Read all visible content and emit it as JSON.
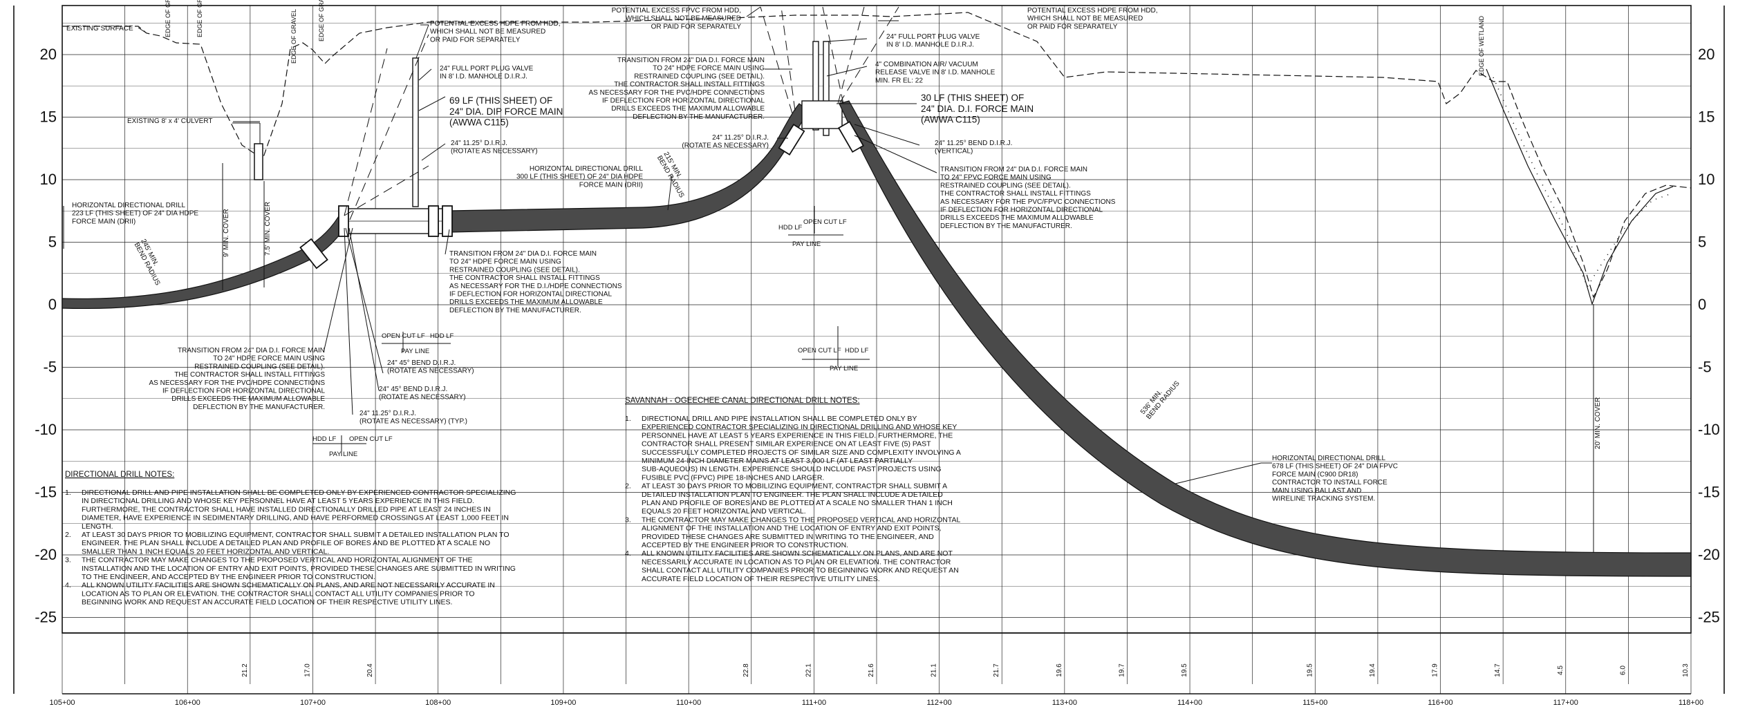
{
  "profile": {
    "elevation_labels": [
      "20",
      "15",
      "10",
      "5",
      "0",
      "-5",
      "-10",
      "-15",
      "-20",
      "-25"
    ],
    "elevation_values": [
      20,
      15,
      10,
      5,
      0,
      -5,
      -10,
      -15,
      -20,
      -25
    ],
    "stations": [
      "105+00",
      "106+00",
      "107+00",
      "108+00",
      "109+00",
      "110+00",
      "111+00",
      "112+00",
      "113+00",
      "114+00",
      "115+00",
      "116+00",
      "117+00",
      "118+00"
    ],
    "ground_elevations": [
      "21.2",
      "17.0",
      "20.4",
      "22.8",
      "22.1",
      "21.6",
      "21.1",
      "21.7",
      "19.6",
      "19.7",
      "19.5",
      "19.5",
      "19.4",
      "17.9",
      "14.7",
      "4.5",
      "6.0",
      "10.3"
    ],
    "ground_elevation_positions_sta": [
      106.5,
      107.0,
      107.5,
      110.5,
      111.0,
      111.5,
      112.0,
      112.5,
      113.0,
      113.5,
      114.0,
      115.0,
      115.5,
      116.0,
      116.5,
      117.0,
      117.5,
      118.0
    ]
  },
  "callouts": {
    "existing_surface": "EXISTING SURFACE",
    "edge_of_gravel": "EDGE OF GRAVEL",
    "edge_of_wetland": "EDGE OF WETLAND",
    "culvert": "EXISTING 8' x 4' CULVERT",
    "hdd_left": [
      "HORIZONTAL DIRECTIONAL DRILL",
      "223 LF (THIS SHEET) OF 24\" DIA HDPE",
      "FORCE MAIN (DRII)"
    ],
    "bend_radius_left": [
      "245' MIN.",
      "BEND RADIUS"
    ],
    "min_cover_9": "9' MIN. COVER",
    "min_cover_75": "7.5' MIN. COVER",
    "excess_hdpe_1": [
      "POTENTIAL EXCESS HDPE FROM HDD,",
      "WHICH SHALL NOT BE MEASURED",
      "OR PAID FOR SEPARATELY"
    ],
    "plug_valve_1": [
      "24\" FULL PORT PLUG VALVE",
      "IN 8' I.D. MANHOLE D.I.R.J."
    ],
    "dip_69": [
      "69 LF (THIS SHEET) OF",
      "24\" DIA. DIP FORCE MAIN",
      "(AWWA C115)"
    ],
    "bend_1125_a": [
      "24\" 11.25° D.I.R.J.",
      "(ROTATE AS NECESSARY)"
    ],
    "hdd_mid": [
      "HORIZONTAL DIRECTIONAL DRILL",
      "300 LF (THIS SHEET) OF 24\" DIA HDPE",
      "FORCE MAIN (DRII)"
    ],
    "transition_center": [
      "TRANSITION FROM 24\" DIA D.I. FORCE MAIN",
      "TO 24\" HDPE FORCE MAIN USING",
      "RESTRAINED COUPLING (SEE DETAIL).",
      "THE CONTRACTOR SHALL INSTALL FITTINGS",
      "AS NECESSARY FOR THE D.I./HDPE CONNECTIONS",
      "IF DEFLECTION FOR HORIZONTAL DIRECTIONAL",
      "DRILLS EXCEEDS THE MAXIMUM ALLOWABLE",
      "DEFLECTION BY THE MANUFACTURER."
    ],
    "transition_left": [
      "TRANSITION FROM 24\" DIA D.I. FORCE MAIN",
      "TO 24\" HDPE FORCE MAIN USING",
      "RESTRAINED COUPLING (SEE DETAIL).",
      "THE CONTRACTOR SHALL INSTALL FITTINGS",
      "AS NECESSARY FOR THE PVC/HDPE CONNECTIONS",
      "IF DEFLECTION FOR HORIZONTAL DIRECTIONAL",
      "DRILLS EXCEEDS THE MAXIMUM ALLOWABLE",
      "DEFLECTION BY THE MANUFACTURER."
    ],
    "bend_45_a": [
      "24\" 45° BEND D.I.R.J.",
      "(ROTATE AS NECESSARY)"
    ],
    "bend_45_b": [
      "24\" 45° BEND D.I.R.J.",
      "(ROTATE AS NECESSARY)"
    ],
    "bend_1125_b": [
      "24\" 11.25° D.I.R.J.",
      "(ROTATE AS NECESSARY) (TYP.)"
    ],
    "excess_fpvc": [
      "POTENTIAL EXCESS FPVC FROM HDD,",
      "WHICH SHALL NOT BE MEASURED",
      "OR PAID FOR SEPARATELY"
    ],
    "transition_top": [
      "TRANSITION FROM 24\" DIA D.I. FORCE MAIN",
      "TO 24\" HDPE FORCE MAIN USING",
      "RESTRAINED COUPLING (SEE DETAIL).",
      "THE CONTRACTOR SHALL INSTALL FITTINGS",
      "AS NECESSARY FOR THE PVC/HDPE CONNECTIONS",
      "IF DEFLECTION FOR HORIZONTAL DIRECTIONAL",
      "DRILLS EXCEEDS THE MAXIMUM ALLOWABLE",
      "DEFLECTION BY THE MANUFACTURER."
    ],
    "bend_1125_c": [
      "24\" 11.25° D.I.R.J.",
      "(ROTATE AS NECESSARY)"
    ],
    "bend_radius_mid": [
      "215' MIN.",
      "BEND RADIUS"
    ],
    "plug_valve_2": [
      "24\" FULL PORT PLUG VALVE",
      "IN 8' I.D. MANHOLE D.I.R.J."
    ],
    "air_vacuum": [
      "4\" COMBINATION AIR/ VACUUM",
      "RELEASE VALVE IN 8' I.D. MANHOLE",
      "MIN. FR EL: 22"
    ],
    "excess_hdpe_2": [
      "POTENTIAL EXCESS HDPE FROM HDD,",
      "WHICH SHALL NOT BE MEASURED",
      "OR PAID FOR SEPARATELY"
    ],
    "dip_30": [
      "30 LF (THIS SHEET) OF",
      "24\" DIA. D.I. FORCE MAIN",
      "(AWWA C115)"
    ],
    "bend_1125_d": [
      "24\" 11.25° BEND D.I.R.J.",
      "(VERTICAL)"
    ],
    "transition_right": [
      "TRANSITION FROM 24\" DIA D.I. FORCE MAIN",
      "TO 24\" FPVC FORCE MAIN USING",
      "RESTRAINED COUPLING (SEE DETAIL).",
      "THE CONTRACTOR SHALL INSTALL FITTINGS",
      "AS NECESSARY FOR THE PVC/FPVC CONNECTIONS",
      "IF DEFLECTION FOR HORIZONTAL DIRECTIONAL",
      "DRILLS EXCEEDS THE MAXIMUM ALLOWABLE",
      "DEFLECTION BY THE MANUFACTURER."
    ],
    "bend_radius_right": [
      "536' MIN.",
      "BEND RADIUS"
    ],
    "hdd_right": [
      "HORIZONTAL DIRECTIONAL DRILL",
      "678 LF (THIS SHEET) OF 24\" DIA FPVC",
      "FORCE MAIN (C900 DR18)",
      "CONTRACTOR TO INSTALL FORCE",
      "MAIN USING BALLAST AND",
      "WIRELINE TRACKING SYSTEM."
    ],
    "min_cover_20": "20' MIN. COVER",
    "hdd_lf": "HDD LF",
    "open_cut_lf": "OPEN CUT LF",
    "pay_line": "PAY LINE"
  },
  "notes_left": {
    "title": "DIRECTIONAL DRILL NOTES:",
    "items": [
      [
        "1.",
        "DIRECTIONAL DRILL AND PIPE INSTALLATION SHALL BE COMPLETED ONLY BY EXPERIENCED CONTRACTOR SPECIALIZING",
        "IN DIRECTIONAL DRILLING AND WHOSE KEY PERSONNEL HAVE AT LEAST 5 YEARS EXPERIENCE IN THIS FIELD.",
        "FURTHERMORE, THE CONTRACTOR SHALL HAVE INSTALLED DIRECTIONALLY DRILLED PIPE AT LEAST 24 INCHES IN",
        "DIAMETER, HAVE EXPERIENCE IN SEDIMENTARY DRILLING, AND HAVE PERFORMED CROSSINGS AT LEAST 1,000 FEET IN",
        "LENGTH."
      ],
      [
        "2.",
        "AT LEAST 30 DAYS PRIOR TO MOBILIZING EQUIPMENT, CONTRACTOR SHALL SUBMIT A DETAILED INSTALLATION PLAN TO",
        "ENGINEER. THE PLAN SHALL INCLUDE A DETAILED PLAN AND PROFILE OF BORES AND BE PLOTTED AT A SCALE NO",
        "SMALLER THAN 1 INCH EQUALS 20 FEET HORIZONTAL AND VERTICAL."
      ],
      [
        "3.",
        "THE CONTRACTOR MAY MAKE CHANGES TO THE PROPOSED VERTICAL AND HORIZONTAL ALIGNMENT OF THE",
        "INSTALLATION AND THE LOCATION OF ENTRY AND EXIT POINTS, PROVIDED THESE CHANGES ARE SUBMITTED IN WRITING",
        "TO THE ENGINEER, AND ACCEPTED BY THE ENGINEER PRIOR TO CONSTRUCTION."
      ],
      [
        "4.",
        "ALL KNOWN UTILITY FACILITIES ARE SHOWN SCHEMATICALLY ON PLANS, AND ARE NOT NECESSARILY ACCURATE IN",
        "LOCATION AS TO PLAN OR ELEVATION. THE CONTRACTOR SHALL CONTACT ALL UTILITY COMPANIES PRIOR TO",
        "BEGINNING WORK AND REQUEST AN ACCURATE FIELD LOCATION OF THEIR RESPECTIVE UTILITY LINES."
      ]
    ]
  },
  "notes_right": {
    "title": "SAVANNAH - OGEECHEE CANAL DIRECTIONAL DRILL NOTES:",
    "items": [
      [
        "1.",
        "DIRECTIONAL DRILL AND PIPE INSTALLATION SHALL BE COMPLETED ONLY BY",
        "EXPERIENCED CONTRACTOR SPECIALIZING IN DIRECTIONAL DRILLING AND WHOSE KEY",
        "PERSONNEL HAVE AT LEAST 5 YEARS EXPERIENCE IN THIS FIELD. FURTHERMORE, THE",
        "CONTRACTOR SHALL PRESENT SIMILAR EXPERIENCE ON AT LEAST FIVE (5) PAST",
        "SUCCESSFULLY COMPLETED PROJECTS OF SIMILAR SIZE AND COMPLEXITY INVOLVING A",
        "MINIMUM 24-INCH DIAMETER MAINS AT LEAST 3,000 LF (AT LEAST PARTIALLY",
        "SUB-AQUEOUS) IN LENGTH. EXPERIENCE SHOULD INCLUDE PAST PROJECTS USING",
        "FUSIBLE PVC (FPVC) PIPE 18-INCHES AND LARGER."
      ],
      [
        "2.",
        "AT LEAST 30 DAYS PRIOR TO MOBILIZING EQUIPMENT, CONTRACTOR SHALL SUBMIT A",
        "DETAILED INSTALLATION PLAN TO ENGINEER. THE PLAN SHALL INCLUDE A DETAILED",
        "PLAN AND PROFILE OF BORES AND BE PLOTTED AT A SCALE NO SMALLER THAN 1 INCH",
        "EQUALS 20 FEET HORIZONTAL AND VERTICAL."
      ],
      [
        "3.",
        "THE CONTRACTOR MAY MAKE CHANGES TO THE PROPOSED VERTICAL AND HORIZONTAL",
        "ALIGNMENT OF THE INSTALLATION AND THE LOCATION OF ENTRY AND EXIT POINTS,",
        "PROVIDED THESE CHANGES ARE SUBMITTED IN WRITING TO THE ENGINEER, AND",
        "ACCEPTED BY THE ENGINEER PRIOR TO CONSTRUCTION."
      ],
      [
        "4.",
        "ALL KNOWN UTILITY FACILITIES ARE SHOWN SCHEMATICALLY ON PLANS, AND ARE NOT",
        "NECESSARILY ACCURATE IN LOCATION AS TO PLAN OR ELEVATION. THE CONTRACTOR",
        "SHALL CONTACT ALL UTILITY COMPANIES PRIOR TO BEGINNING WORK AND REQUEST AN",
        "ACCURATE FIELD LOCATION OF THEIR RESPECTIVE UTILITY LINES."
      ]
    ]
  },
  "colors": {
    "pipe": "#4a4a4a",
    "grid": "#222222",
    "line": "#111111",
    "background": "#ffffff"
  }
}
